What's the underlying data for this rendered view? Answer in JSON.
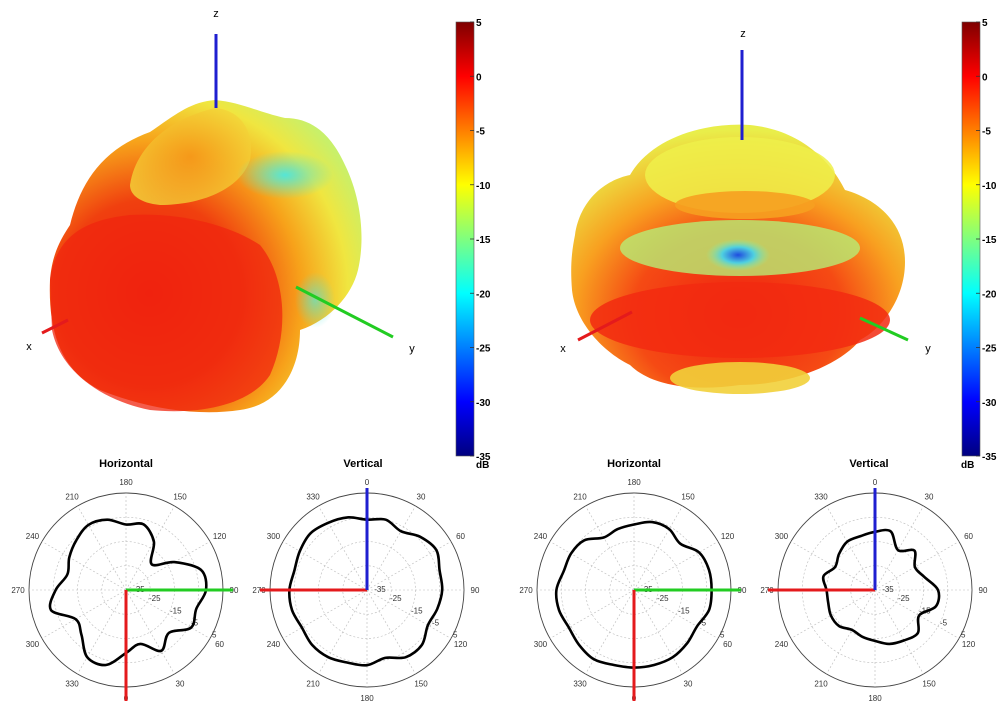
{
  "panels": [
    {
      "id": "left",
      "colorbar": {
        "ticks": [
          5,
          0,
          -5,
          -10,
          -15,
          -20,
          -25,
          -30,
          -35
        ],
        "unit": "dB"
      },
      "axes_3d": {
        "x": "x",
        "y": "y",
        "z": "z"
      }
    },
    {
      "id": "right",
      "colorbar": {
        "ticks": [
          5,
          0,
          -5,
          -10,
          -15,
          -20,
          -25,
          -30,
          -35
        ],
        "unit": "dB"
      },
      "axes_3d": {
        "x": "x",
        "y": "y",
        "z": "z"
      }
    }
  ],
  "colors": {
    "x_axis": "#e41a1c",
    "y_axis": "#22cc22",
    "z_axis": "#1f1fd0",
    "pattern_line": "#000000",
    "colormap": [
      "#7f0000",
      "#ff0000",
      "#ff7f00",
      "#ffff00",
      "#7fff7f",
      "#00ffff",
      "#007fff",
      "#0000ff",
      "#00007f"
    ]
  },
  "chart_data": [
    {
      "type": "polar",
      "title": "Horizontal",
      "angle_labels": [
        "180",
        "150",
        "120",
        "90",
        "60",
        "30",
        "0",
        "330",
        "300",
        "270",
        "240",
        "210"
      ],
      "radial_ticks": [
        "-35",
        "-25",
        "-15",
        "-5",
        "5"
      ],
      "rlim": [
        -35,
        5
      ],
      "series": [
        {
          "values_db": [
            -8,
            -7,
            -12,
            -20,
            -12,
            -3,
            -2,
            -5,
            -4,
            -10,
            -6,
            -12,
            -9,
            -3,
            -3,
            -9,
            -11,
            -3,
            -6,
            -10,
            -8,
            -6,
            -4,
            -5
          ]
        }
      ]
    },
    {
      "type": "polar",
      "title": "Vertical",
      "angle_labels": [
        "0",
        "30",
        "60",
        "90",
        "120",
        "150",
        "180",
        "210",
        "240",
        "270",
        "300",
        "330"
      ],
      "radial_ticks": [
        "-35",
        "-25",
        "-15",
        "-5",
        "5"
      ],
      "rlim": [
        -35,
        5
      ],
      "series": [
        {
          "values_db": [
            -6,
            -5,
            -7,
            -4,
            -2,
            -4,
            -4,
            -5,
            -6,
            -3,
            -3,
            -6,
            -4,
            -4,
            -3,
            -3,
            -4,
            -3,
            -3,
            -4,
            -3,
            -2,
            -3,
            -4
          ]
        }
      ]
    },
    {
      "type": "polar",
      "title": "Horizontal",
      "angle_labels": [
        "180",
        "150",
        "120",
        "90",
        "60",
        "30",
        "0",
        "330",
        "300",
        "270",
        "240",
        "210"
      ],
      "radial_ticks": [
        "-35",
        "-25",
        "-15",
        "-5",
        "5"
      ],
      "rlim": [
        -35,
        5
      ],
      "series": [
        {
          "values_db": [
            -8,
            -6,
            -6,
            -8,
            -4,
            -3,
            -3,
            -3,
            -5,
            -4,
            -3,
            -3,
            -3,
            -3,
            -2,
            -3,
            -4,
            -3,
            -3,
            -5,
            -5,
            -6,
            -10,
            -9
          ]
        }
      ]
    },
    {
      "type": "polar",
      "title": "Vertical",
      "angle_labels": [
        "0",
        "30",
        "60",
        "90",
        "120",
        "150",
        "180",
        "210",
        "240",
        "270",
        "300",
        "330"
      ],
      "radial_ticks": [
        "-35",
        "-25",
        "-15",
        "-5",
        "5"
      ],
      "rlim": [
        -35,
        5
      ],
      "series": [
        {
          "values_db": [
            -11,
            -10,
            -16,
            -12,
            -16,
            -14,
            -9,
            -9,
            -14,
            -10,
            -11,
            -12,
            -14,
            -15,
            -16,
            -14,
            -14,
            -15,
            -15,
            -13,
            -16,
            -14,
            -12,
            -12
          ]
        }
      ]
    }
  ]
}
